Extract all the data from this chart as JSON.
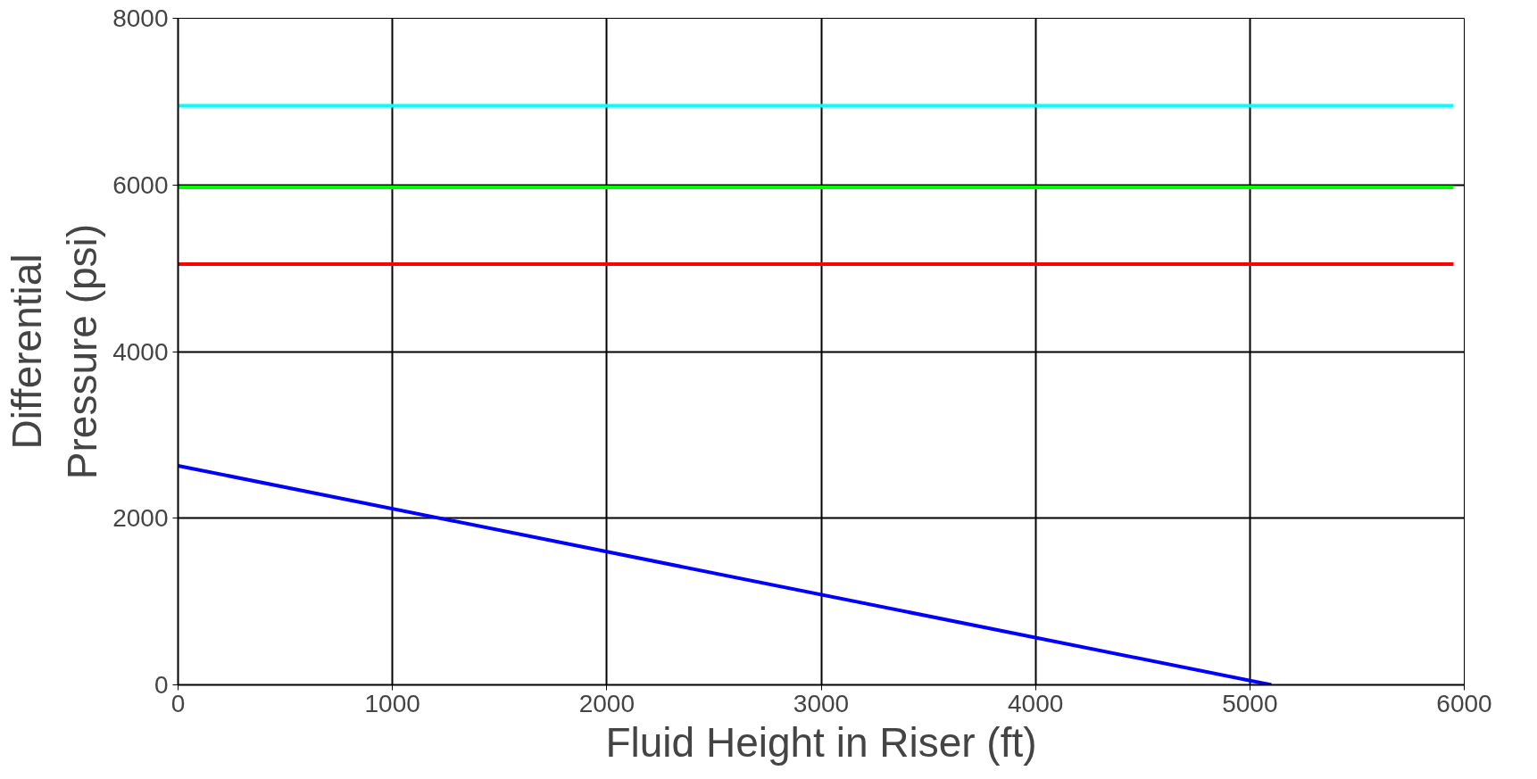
{
  "chart_data": {
    "type": "line",
    "xlabel": "Fluid Height in Riser (ft)",
    "ylabel": "Differential Pressure (psi)",
    "xlim": [
      0,
      6000
    ],
    "ylim": [
      0,
      8000
    ],
    "xticks": [
      0,
      1000,
      2000,
      3000,
      4000,
      5000,
      6000
    ],
    "yticks": [
      0,
      2000,
      4000,
      6000,
      8000
    ],
    "grid": true,
    "line_style": "solid",
    "series": [
      {
        "color": "#00ffff",
        "x": [
          0,
          5950
        ],
        "values": [
          6950,
          6950
        ]
      },
      {
        "color": "#00ff00",
        "x": [
          0,
          5950
        ],
        "values": [
          5970,
          5970
        ]
      },
      {
        "color": "#ff0000",
        "x": [
          0,
          5950
        ],
        "values": [
          5050,
          5050
        ]
      },
      {
        "color": "#0000ff",
        "x": [
          0,
          5100
        ],
        "values": [
          2630,
          0
        ]
      }
    ]
  }
}
